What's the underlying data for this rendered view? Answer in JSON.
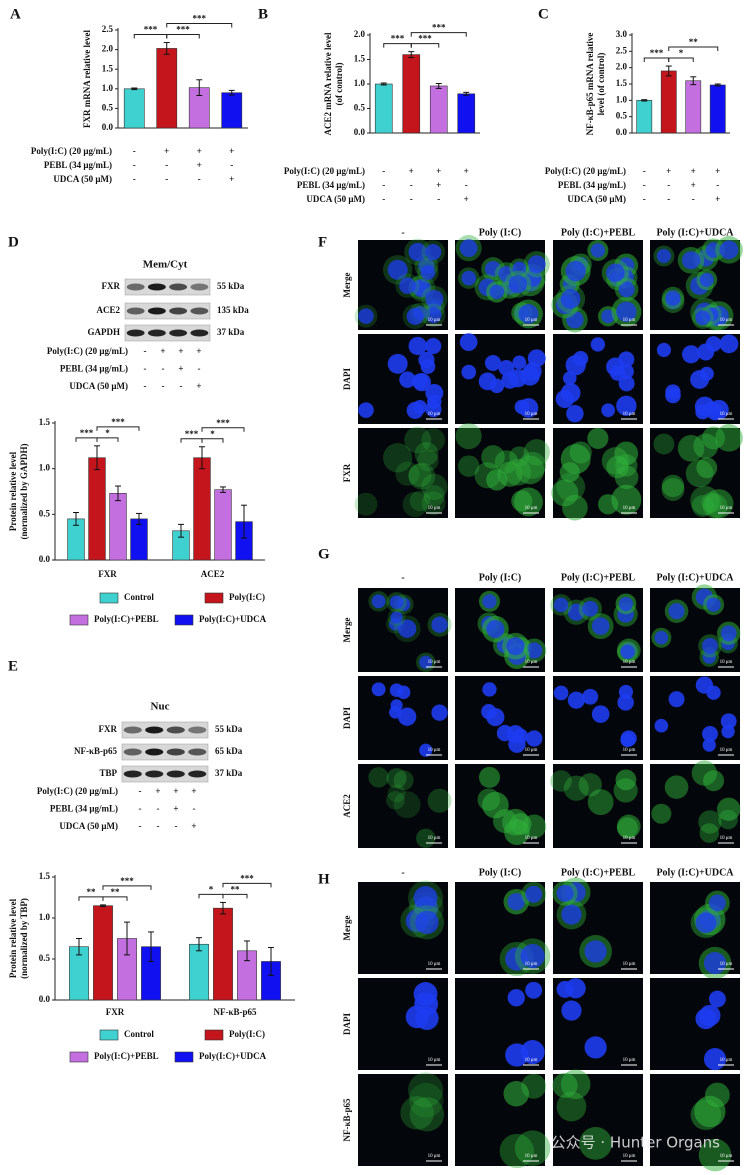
{
  "chart_data": [
    {
      "type": "bar",
      "panel": "A",
      "ylabel": [
        "FXR mRNA relative level"
      ],
      "values": [
        1.0,
        2.03,
        1.03,
        0.9
      ],
      "errors": [
        0.02,
        0.15,
        0.2,
        0.06
      ],
      "colors": [
        "#3fd1cf",
        "#c4141c",
        "#c46fe0",
        "#1010f0"
      ],
      "ylim": [
        0,
        2.5
      ],
      "yticks": [
        {
          "value": 0,
          "label": "0.0"
        },
        0.5,
        {
          "value": 1,
          "label": "1.0"
        },
        1.5,
        {
          "value": 2,
          "label": "2.0"
        },
        2.5
      ],
      "conditions": [
        {
          "label": "Poly(I:C) (20 μg/mL)",
          "signs": [
            "-",
            "+",
            "+",
            "+"
          ]
        },
        {
          "label": "PEBL (34 μg/mL)",
          "signs": [
            "-",
            "-",
            "+",
            "-"
          ]
        },
        {
          "label": "UDCA (50 μM)",
          "signs": [
            "-",
            "-",
            "-",
            "+"
          ]
        }
      ],
      "significance": [
        {
          "from": 0,
          "to": 1,
          "label": "***"
        },
        {
          "from": 1,
          "to": 2,
          "label": "***"
        },
        {
          "from": 1,
          "to": 3,
          "label": "***"
        }
      ]
    },
    {
      "type": "bar",
      "panel": "B",
      "ylabel": [
        "ACE2 mRNA relative level",
        "(of control)"
      ],
      "values": [
        1.0,
        1.6,
        0.96,
        0.8
      ],
      "errors": [
        0.02,
        0.06,
        0.05,
        0.03
      ],
      "colors": [
        "#3fd1cf",
        "#c4141c",
        "#c46fe0",
        "#1010f0"
      ],
      "ylim": [
        0,
        2
      ],
      "yticks": [
        {
          "value": 0,
          "label": "0.0"
        },
        0.5,
        {
          "value": 1,
          "label": "1.0"
        },
        1.5,
        {
          "value": 2,
          "label": "2.0"
        }
      ],
      "conditions": [
        {
          "label": "Poly(I:C) (20 μg/mL)",
          "signs": [
            "-",
            "+",
            "+",
            "+"
          ]
        },
        {
          "label": "PEBL (34 μg/mL)",
          "signs": [
            "-",
            "-",
            "+",
            "-"
          ]
        },
        {
          "label": "UDCA (50 μM)",
          "signs": [
            "-",
            "-",
            "-",
            "+"
          ]
        }
      ],
      "significance": [
        {
          "from": 0,
          "to": 1,
          "label": "***"
        },
        {
          "from": 1,
          "to": 2,
          "label": "***"
        },
        {
          "from": 1,
          "to": 3,
          "label": "***"
        }
      ]
    },
    {
      "type": "bar",
      "panel": "C",
      "ylabel": [
        "NF-κB-p65 mRNA relative",
        "level (of control)"
      ],
      "values": [
        1.0,
        1.9,
        1.6,
        1.47
      ],
      "errors": [
        0.02,
        0.15,
        0.12,
        0.03
      ],
      "colors": [
        "#3fd1cf",
        "#c4141c",
        "#c46fe0",
        "#1010f0"
      ],
      "ylim": [
        0,
        3
      ],
      "yticks": [
        {
          "value": 0,
          "label": "0.0"
        },
        0.5,
        {
          "value": 1,
          "label": "1.0"
        },
        1.5,
        {
          "value": 2,
          "label": "2.0"
        },
        2.5,
        {
          "value": 3,
          "label": "3.0"
        }
      ],
      "conditions": [
        {
          "label": "Poly(I:C) (20 μg/mL)",
          "signs": [
            "-",
            "+",
            "+",
            "+"
          ]
        },
        {
          "label": "PEBL (34 μg/mL)",
          "signs": [
            "-",
            "-",
            "+",
            "-"
          ]
        },
        {
          "label": "UDCA (50 μM)",
          "signs": [
            "-",
            "-",
            "-",
            "+"
          ]
        }
      ],
      "significance": [
        {
          "from": 0,
          "to": 1,
          "label": "***"
        },
        {
          "from": 1,
          "to": 2,
          "label": "*"
        },
        {
          "from": 1,
          "to": 3,
          "label": "**"
        }
      ]
    },
    {
      "type": "grouped_bar",
      "ylabel": [
        "Protein relative level",
        "(normalized by GAPDH)"
      ],
      "categories": [
        "FXR",
        "ACE2"
      ],
      "series": [
        {
          "name": "Control",
          "color": "#3fd1cf",
          "values": [
            0.45,
            0.32
          ],
          "errors": [
            0.07,
            0.07
          ]
        },
        {
          "name": "Poly(I:C)",
          "color": "#c4141c",
          "values": [
            1.12,
            1.12
          ],
          "errors": [
            0.13,
            0.12
          ]
        },
        {
          "name": "Poly(I:C)+PEBL",
          "color": "#c46fe0",
          "values": [
            0.73,
            0.77
          ],
          "errors": [
            0.08,
            0.03
          ]
        },
        {
          "name": "Poly(I:C)+UDCA",
          "color": "#1010f0",
          "values": [
            0.45,
            0.42
          ],
          "errors": [
            0.06,
            0.18
          ]
        }
      ],
      "ylim": [
        0,
        1.5
      ],
      "yticks": [
        {
          "value": 0,
          "label": "0.0"
        },
        0.5,
        {
          "value": 1,
          "label": "1.0"
        },
        1.5
      ],
      "significance": [
        {
          "category": 0,
          "from": 0,
          "to": 1,
          "label": "***"
        },
        {
          "category": 0,
          "from": 1,
          "to": 2,
          "label": "*"
        },
        {
          "category": 0,
          "from": 1,
          "to": 3,
          "label": "***"
        },
        {
          "category": 1,
          "from": 0,
          "to": 1,
          "label": "***"
        },
        {
          "category": 1,
          "from": 1,
          "to": 2,
          "label": "*"
        },
        {
          "category": 1,
          "from": 1,
          "to": 3,
          "label": "***"
        }
      ]
    },
    {
      "type": "grouped_bar",
      "ylabel": [
        "Protein relative level",
        "(normalized by TBP)"
      ],
      "categories": [
        "FXR",
        "NF-κB-p65"
      ],
      "series": [
        {
          "name": "Control",
          "color": "#3fd1cf",
          "values": [
            0.65,
            0.68
          ],
          "errors": [
            0.1,
            0.08
          ]
        },
        {
          "name": "Poly(I:C)",
          "color": "#c4141c",
          "values": [
            1.15,
            1.12
          ],
          "errors": [
            0.01,
            0.07
          ]
        },
        {
          "name": "Poly(I:C)+PEBL",
          "color": "#c46fe0",
          "values": [
            0.75,
            0.6
          ],
          "errors": [
            0.2,
            0.12
          ]
        },
        {
          "name": "Poly(I:C)+UDCA",
          "color": "#1010f0",
          "values": [
            0.65,
            0.47
          ],
          "errors": [
            0.18,
            0.17
          ]
        }
      ],
      "ylim": [
        0,
        1.5
      ],
      "yticks": [
        {
          "value": 0,
          "label": "0.0"
        },
        0.5,
        {
          "value": 1,
          "label": "1.0"
        },
        1.5
      ],
      "significance": [
        {
          "category": 0,
          "from": 0,
          "to": 1,
          "label": "**"
        },
        {
          "category": 0,
          "from": 1,
          "to": 2,
          "label": "**"
        },
        {
          "category": 0,
          "from": 1,
          "to": 3,
          "label": "***"
        },
        {
          "category": 1,
          "from": 0,
          "to": 1,
          "label": "*"
        },
        {
          "category": 1,
          "from": 1,
          "to": 2,
          "label": "**"
        },
        {
          "category": 1,
          "from": 1,
          "to": 3,
          "label": "***"
        }
      ]
    }
  ],
  "blots": [
    {
      "panel": "D",
      "title": "Mem/Cyt",
      "bands": [
        {
          "label": "FXR",
          "size": "55 kDa"
        },
        {
          "label": "ACE2",
          "size": "135 kDa"
        },
        {
          "label": "GAPDH",
          "size": "37 kDa"
        }
      ],
      "conditions": [
        {
          "label": "Poly(I:C) (20 μg/mL)",
          "signs": [
            "-",
            "+",
            "+",
            "+"
          ]
        },
        {
          "label": "PEBL (34 μg/mL)",
          "signs": [
            "-",
            "-",
            "+",
            "-"
          ]
        },
        {
          "label": "UDCA (50 μM)",
          "signs": [
            "-",
            "-",
            "-",
            "+"
          ]
        }
      ]
    },
    {
      "panel": "E",
      "title": "Nuc",
      "bands": [
        {
          "label": "FXR",
          "size": "55 kDa"
        },
        {
          "label": "NF-κB-p65",
          "size": "65 kDa"
        },
        {
          "label": "TBP",
          "size": "37 kDa"
        }
      ],
      "conditions": [
        {
          "label": "Poly(I:C) (20 μg/mL)",
          "signs": [
            "-",
            "+",
            "+",
            "+"
          ]
        },
        {
          "label": "PEBL (34 μg/mL)",
          "signs": [
            "-",
            "-",
            "+",
            "-"
          ]
        },
        {
          "label": "UDCA (50 μM)",
          "signs": [
            "-",
            "-",
            "-",
            "+"
          ]
        }
      ]
    }
  ],
  "micrographs": [
    {
      "panel": "F",
      "columns": [
        "-",
        "Poly (I:C)",
        "Poly (I:C)+PEBL",
        "Poly (I:C)+UDCA"
      ],
      "rows": [
        "Merge",
        "DAPI",
        "FXR"
      ],
      "scale_bar": "10 μm"
    },
    {
      "panel": "G",
      "columns": [
        "-",
        "Poly (I:C)",
        "Poly (I:C)+PEBL",
        "Poly (I:C)+UDCA"
      ],
      "rows": [
        "Merge",
        "DAPI",
        "ACE2"
      ],
      "scale_bar": "10 μm"
    },
    {
      "panel": "H",
      "columns": [
        "-",
        "Poly (I:C)",
        "Poly (I:C)+PEBL",
        "Poly (I:C)+UDCA"
      ],
      "rows": [
        "Merge",
        "DAPI",
        "NF-κB-p65"
      ],
      "scale_bar": "10 μm"
    }
  ],
  "watermark": "公众号 · Hunter Organs"
}
